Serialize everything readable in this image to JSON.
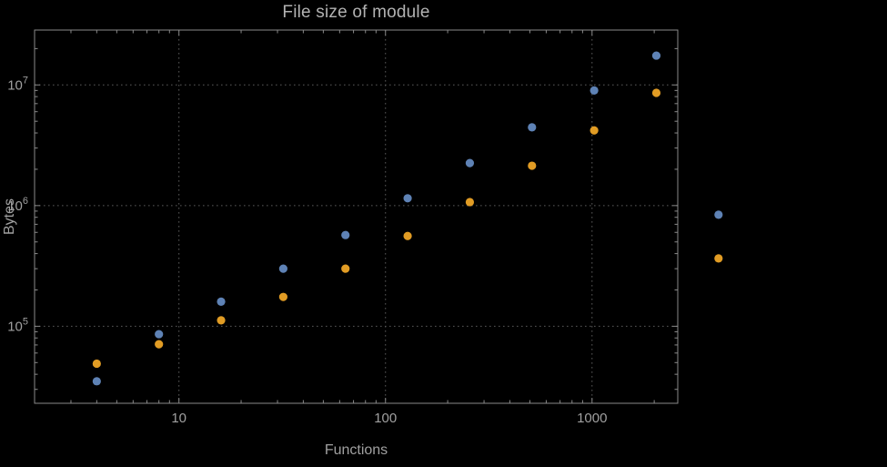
{
  "chart_data": {
    "type": "scatter",
    "title": "File size of module",
    "xlabel": "Functions",
    "ylabel": "Bytes",
    "x_scale": "log",
    "y_scale": "log",
    "xlim": [
      2.0,
      2600
    ],
    "ylim": [
      23000,
      28500000
    ],
    "grid": "dotted gridlines at decade ticks, both axes",
    "legend_position": "none",
    "x": [
      4,
      8,
      16,
      32,
      64,
      128,
      256,
      512,
      1024,
      2048,
      4096
    ],
    "series": [
      {
        "name": "blue",
        "color": "#5e82b5",
        "values": [
          35000,
          86000,
          160000,
          300000,
          570000,
          1150000,
          2250000,
          4450000,
          9000000,
          17500000,
          840000
        ]
      },
      {
        "name": "orange",
        "color": "#e19c24",
        "values": [
          49000,
          71000,
          112000,
          175000,
          300000,
          560000,
          1070000,
          2140000,
          4200000,
          8600000,
          365000
        ]
      }
    ],
    "xticks": [
      {
        "value": 10,
        "label": "10"
      },
      {
        "value": 100,
        "label": "100"
      },
      {
        "value": 1000,
        "label": "1000"
      }
    ],
    "yticks": [
      {
        "value": 100000,
        "base": "10",
        "exp": "5"
      },
      {
        "value": 1000000,
        "base": "10",
        "exp": "6"
      },
      {
        "value": 10000000,
        "base": "10",
        "exp": "7"
      }
    ]
  },
  "colors": {
    "background": "#000000",
    "frame": "#8a8a8a",
    "grid": "#5a5a5a",
    "text": "#a0a0a0",
    "title_text": "#b2b2b2"
  }
}
